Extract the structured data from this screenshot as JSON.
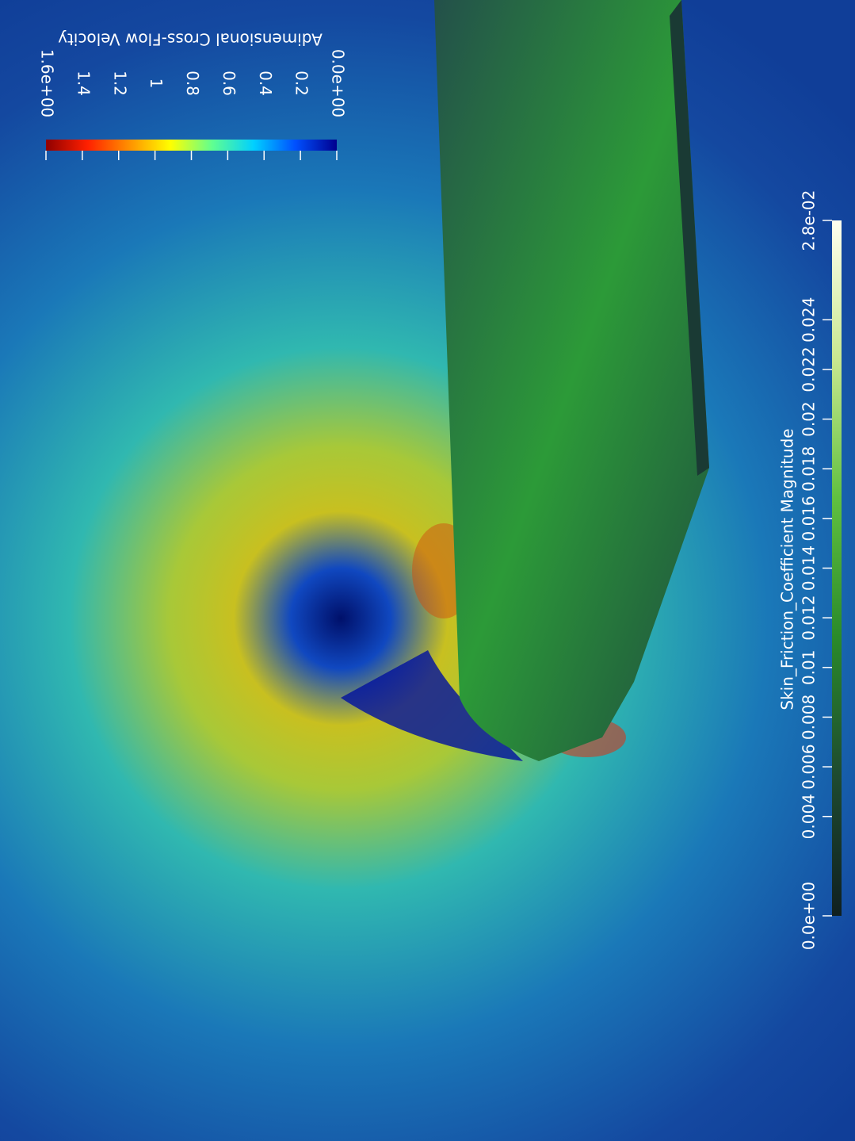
{
  "colorbars": [
    {
      "title": "Adimensional Cross-Flow Velocity",
      "orientation": "horizontal-reversed",
      "lim": [
        0,
        1.6
      ],
      "ticks": [
        {
          "value": 0,
          "label": "0.0e+00"
        },
        0.2,
        0.4,
        0.6,
        0.8,
        1,
        1.2,
        1.4,
        {
          "value": 1.6,
          "label": "1.6e+00"
        }
      ],
      "colors": [
        "#00008f",
        "#0050ff",
        "#00d0ff",
        "#60ff90",
        "#ffff00",
        "#ff9000",
        "#ff2000",
        "#8f0000"
      ]
    },
    {
      "title": "Skin_Friction_Coefficient Magnitude",
      "orientation": "vertical",
      "lim": [
        0,
        0.028
      ],
      "ticks": [
        {
          "value": 0,
          "label": "0.0e+00"
        },
        0.004,
        0.006,
        0.008,
        0.01,
        0.012,
        0.014,
        0.016,
        0.018,
        0.02,
        0.022,
        0.024,
        {
          "value": 0.028,
          "label": "2.8e-02"
        }
      ],
      "colors": [
        "#102020",
        "#1e4a30",
        "#2a8a2a",
        "#60c040",
        "#c8e890",
        "#fffff0"
      ]
    }
  ]
}
